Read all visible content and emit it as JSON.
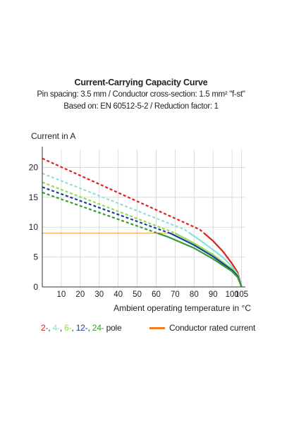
{
  "chart_data": {
    "type": "line",
    "title": "Current-Carrying Capacity Curve",
    "subtitle_lines": [
      "Pin spacing: 3.5 mm / Conductor cross-section: 1.5 mm² \"f-st\"",
      "Based on: EN 60512-5-2 / Reduction factor: 1"
    ],
    "ylabel": "Current in A",
    "xlabel": "Ambient operating temperature in °C",
    "xlim": [
      0,
      107
    ],
    "ylim": [
      0,
      23
    ],
    "xticks": [
      10,
      20,
      30,
      40,
      50,
      60,
      70,
      80,
      90,
      100,
      105
    ],
    "yticks": [
      0,
      5,
      10,
      15,
      20
    ],
    "grid": true,
    "legend_poles": {
      "items": [
        {
          "label": "2-",
          "color": "#e0201b"
        },
        {
          "label": "4-",
          "color": "#8fe0dc"
        },
        {
          "label": "6-",
          "color": "#8ede52"
        },
        {
          "label": "12-",
          "color": "#1f3aa5"
        },
        {
          "label": "24-",
          "color": "#2f9f2f"
        }
      ],
      "suffix": "pole",
      "separator": ", "
    },
    "legend_rated": {
      "label": "Conductor rated current",
      "color": "#f07d1e"
    },
    "series": [
      {
        "name": "2-",
        "color": "#e0201b",
        "x": [
          0,
          83,
          90,
          95,
          100,
          103,
          105
        ],
        "y": [
          21.5,
          9.6,
          7.7,
          6.0,
          3.9,
          2.4,
          0
        ]
      },
      {
        "name": "4-",
        "color": "#8fe0dc",
        "x": [
          0,
          75,
          85,
          95,
          100,
          103,
          105
        ],
        "y": [
          19.0,
          9.6,
          7.4,
          5.0,
          3.4,
          2.1,
          0
        ]
      },
      {
        "name": "6-",
        "color": "#8ede52",
        "x": [
          0,
          70,
          80,
          90,
          100,
          103,
          105
        ],
        "y": [
          17.5,
          9.0,
          7.3,
          5.4,
          3.0,
          1.9,
          0
        ]
      },
      {
        "name": "12-",
        "color": "#1f3aa5",
        "x": [
          0,
          68,
          80,
          90,
          100,
          103,
          105
        ],
        "y": [
          16.7,
          8.9,
          7.0,
          5.1,
          2.8,
          1.8,
          0
        ]
      },
      {
        "name": "24-",
        "color": "#2f9f2f",
        "x": [
          0,
          66,
          80,
          90,
          100,
          103,
          105
        ],
        "y": [
          15.8,
          8.4,
          6.5,
          4.7,
          2.6,
          1.6,
          0
        ]
      }
    ],
    "rated_current": {
      "value": 9.0,
      "x_end": 67
    }
  }
}
